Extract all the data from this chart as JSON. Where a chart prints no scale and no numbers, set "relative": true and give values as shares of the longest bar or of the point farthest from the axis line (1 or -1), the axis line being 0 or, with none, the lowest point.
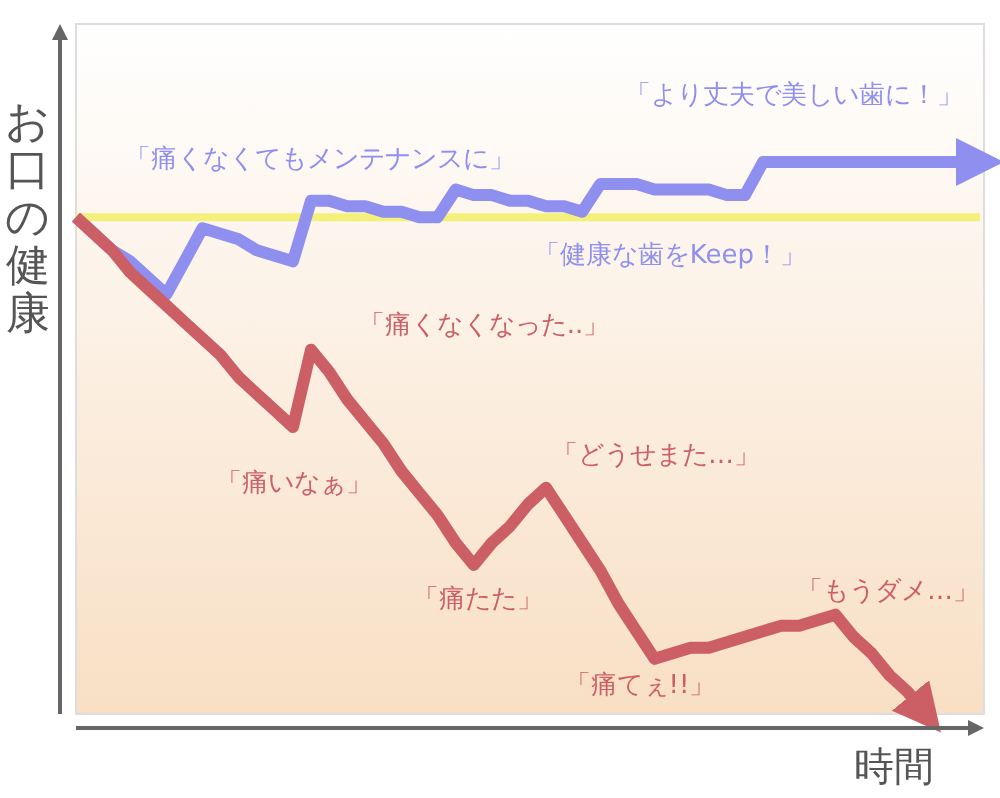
{
  "chart_data": {
    "type": "line",
    "relative": true,
    "xlabel": "時間",
    "ylabel": "お口の健康",
    "marker": "none",
    "line_style": "solid",
    "categories": [
      null,
      null,
      null,
      null,
      null,
      null,
      null,
      null,
      null,
      null,
      null,
      null,
      null,
      null,
      null,
      null,
      null,
      null,
      null,
      null,
      null,
      null,
      null,
      null,
      null,
      null,
      null,
      null,
      null,
      null,
      null,
      null,
      null,
      null,
      null,
      null,
      null,
      null,
      null,
      null,
      null,
      null,
      null,
      null,
      null,
      null,
      null,
      null,
      null,
      null,
      null
    ],
    "series": [
      {
        "color": "#8f8ff0",
        "values": [
          0.9,
          0.87,
          0.84,
          0.82,
          0.79,
          0.76,
          0.82,
          0.88,
          0.87,
          0.86,
          0.84,
          0.83,
          0.82,
          0.93,
          0.93,
          0.92,
          0.92,
          0.91,
          0.91,
          0.9,
          0.9,
          0.95,
          0.94,
          0.94,
          0.93,
          0.93,
          0.92,
          0.92,
          0.91,
          0.96,
          0.96,
          0.96,
          0.95,
          0.95,
          0.95,
          0.95,
          0.94,
          0.94,
          1,
          1,
          1,
          1,
          1,
          1,
          1,
          1,
          1,
          1,
          1,
          1,
          1
        ]
      },
      {
        "color": "#cc5f66",
        "values": [
          0.9,
          0.87,
          0.84,
          0.8,
          0.77,
          0.74,
          0.71,
          0.68,
          0.65,
          0.61,
          0.58,
          0.55,
          0.52,
          0.66,
          0.62,
          0.57,
          0.53,
          0.49,
          0.44,
          0.4,
          0.36,
          0.31,
          0.27,
          0.31,
          0.34,
          0.38,
          0.41,
          0.36,
          0.31,
          0.26,
          0.2,
          0.15,
          0.1,
          0.11,
          0.12,
          0.12,
          0.13,
          0.14,
          0.15,
          0.16,
          0.16,
          0.17,
          0.18,
          0.14,
          0.11,
          0.07,
          0.04,
          0,
          null,
          null,
          null
        ]
      }
    ],
    "ref_lines": [
      {
        "axis": "y",
        "value": 0.9,
        "color": "#f5f07a"
      }
    ],
    "annotations": [
      "「痛くなくてもメンテナンスに」",
      "「より丈夫で美しい歯に！」",
      "「健康な歯をKeep！」",
      "「痛くなくなった..」",
      "「痛いなぁ」",
      "「どうせまた…」",
      "「痛たた」",
      "「痛てぇ!!」",
      "「もうダメ…」"
    ]
  }
}
